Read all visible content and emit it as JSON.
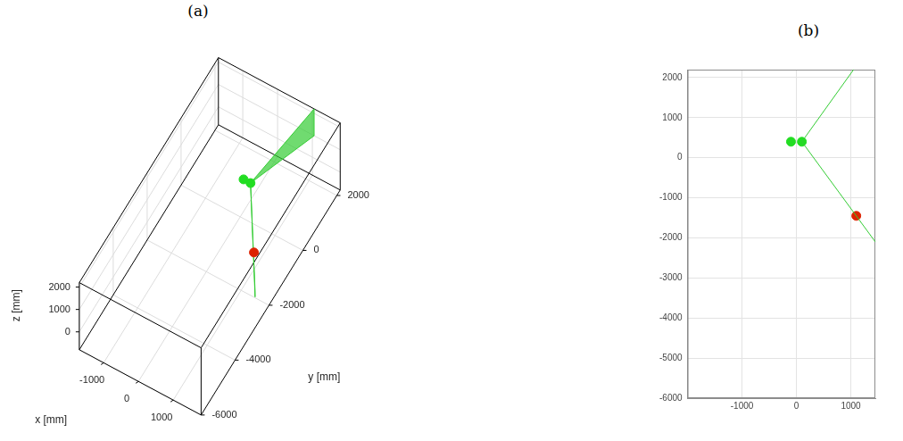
{
  "chart_data": [
    {
      "type": "scatter3d",
      "title": "(a)",
      "x_label": "x [mm]",
      "y_label": "y [mm]",
      "z_label": "z [mm]",
      "xlim": [
        -1700,
        1800
      ],
      "ylim": [
        -6000,
        2200
      ],
      "zlim": [
        -800,
        2200
      ],
      "xticks": [
        -1000,
        0,
        1000
      ],
      "yticks": [
        -6000,
        -4000,
        -2000,
        0,
        2000
      ],
      "zticks": [
        0,
        1000,
        2000
      ],
      "grid": true,
      "series": [
        {
          "type": "surface",
          "color": "#33cc33",
          "surfaces": [
            {
              "x": [
                100,
                1050,
                1050
              ],
              "y": [
                400,
                2200,
                2200
              ],
              "z": [
                300,
                1000,
                2200
              ]
            },
            {
              "x": [
                100,
                1450,
                1450
              ],
              "y": [
                400,
                -2100,
                -2100
              ],
              "z": [
                300,
                -600,
                -300
              ]
            }
          ]
        },
        {
          "type": "scatter",
          "color": "#22dd22",
          "x": [
            -100,
            100
          ],
          "y": [
            400,
            400
          ],
          "z": [
            300,
            300
          ]
        },
        {
          "type": "scatter",
          "color": "#dd2200",
          "x": [
            1100
          ],
          "y": [
            -1450
          ],
          "z": [
            300
          ]
        }
      ]
    },
    {
      "type": "scatter",
      "title": "(b)",
      "xlim": [
        -2000,
        1450
      ],
      "ylim": [
        -6000,
        2200
      ],
      "xticks": [
        -1000,
        0,
        1000
      ],
      "yticks": [
        -6000,
        -5000,
        -4000,
        -3000,
        -2000,
        -1000,
        0,
        1000,
        2000
      ],
      "grid": true,
      "series": [
        {
          "type": "line",
          "color": "#33cc33",
          "x": [
            100,
            1050
          ],
          "y": [
            400,
            2200
          ]
        },
        {
          "type": "line",
          "color": "#33cc33",
          "x": [
            100,
            1450
          ],
          "y": [
            400,
            -2100
          ]
        },
        {
          "type": "scatter",
          "color": "#22dd22",
          "x": [
            -100,
            100
          ],
          "y": [
            400,
            400
          ]
        },
        {
          "type": "scatter",
          "color": "#dd2200",
          "x": [
            1100
          ],
          "y": [
            -1450
          ]
        }
      ]
    }
  ]
}
